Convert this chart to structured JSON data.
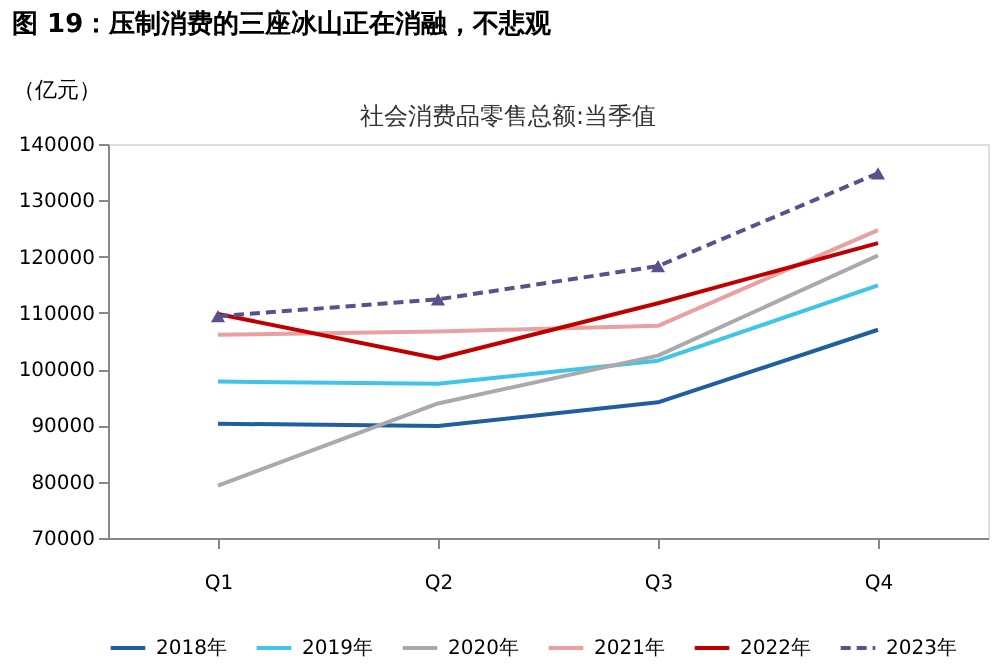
{
  "chart_data": {
    "type": "line",
    "title": "图 19：压制消费的三座冰山正在消融，不悲观",
    "subtitle": "社会消费品零售总额:当季值",
    "ylabel": "（亿元）",
    "categories": [
      "Q1",
      "Q2",
      "Q3",
      "Q4"
    ],
    "ylim": [
      70000,
      140000
    ],
    "yticks": [
      70000,
      80000,
      90000,
      100000,
      110000,
      120000,
      130000,
      140000
    ],
    "grid": false,
    "legend": "bottom",
    "series": [
      {
        "name": "2018年",
        "color": "#1f5fa0",
        "values": [
          90300,
          89900,
          94100,
          107000
        ]
      },
      {
        "name": "2019年",
        "color": "#3ec5e8",
        "values": [
          97800,
          97400,
          101500,
          114900
        ]
      },
      {
        "name": "2020年",
        "color": "#aaaaaa",
        "values": [
          79300,
          93900,
          102400,
          120200
        ]
      },
      {
        "name": "2021年",
        "color": "#e8a0a0",
        "values": [
          106100,
          106700,
          107700,
          124700
        ]
      },
      {
        "name": "2022年",
        "color": "#c00000",
        "values": [
          109800,
          101900,
          111700,
          122400
        ]
      },
      {
        "name": "2023年",
        "color": "#5b4f8c",
        "values": [
          109400,
          112400,
          118300,
          134800
        ],
        "line_style": "dashed",
        "marker": "triangle"
      }
    ]
  }
}
